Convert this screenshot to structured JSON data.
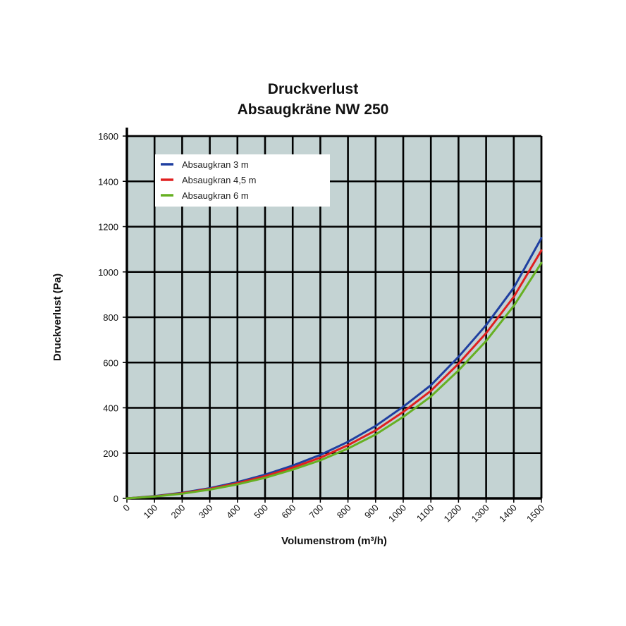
{
  "chart_data": {
    "type": "line",
    "title": "Druckverlust",
    "subtitle": "Absaugkräne NW 250",
    "xlabel": "Volumenstrom (m³/h)",
    "ylabel": "Druckverlust (Pa)",
    "xlim": [
      0,
      1500
    ],
    "ylim": [
      0,
      1600
    ],
    "x_ticks": [
      "0",
      "100",
      "200",
      "300",
      "400",
      "500",
      "600",
      "700",
      "800",
      "900",
      "1000",
      "1100",
      "1200",
      "1300",
      "1400",
      "1500"
    ],
    "y_ticks": [
      "0",
      "200",
      "400",
      "600",
      "800",
      "1000",
      "1200",
      "1400",
      "1600"
    ],
    "grid": true,
    "legend_position": "top-left",
    "background_color": "#c4d3d3",
    "x": [
      0,
      100,
      200,
      300,
      400,
      500,
      600,
      700,
      800,
      900,
      1000,
      1100,
      1200,
      1300,
      1400,
      1500
    ],
    "series": [
      {
        "name": "Absaugkran 3 m",
        "color": "#1f3fa0",
        "values": [
          0,
          10,
          25,
          45,
          72,
          105,
          145,
          192,
          250,
          320,
          405,
          500,
          625,
          765,
          930,
          1150
        ]
      },
      {
        "name": "Absaugkran 4,5 m",
        "color": "#e02020",
        "values": [
          0,
          9,
          23,
          42,
          67,
          98,
          136,
          180,
          235,
          300,
          382,
          475,
          595,
          730,
          890,
          1095
        ]
      },
      {
        "name": "Absaugkran 6 m",
        "color": "#66b022",
        "values": [
          0,
          8,
          21,
          39,
          62,
          91,
          127,
          168,
          220,
          282,
          360,
          450,
          565,
          695,
          850,
          1040
        ]
      }
    ]
  }
}
